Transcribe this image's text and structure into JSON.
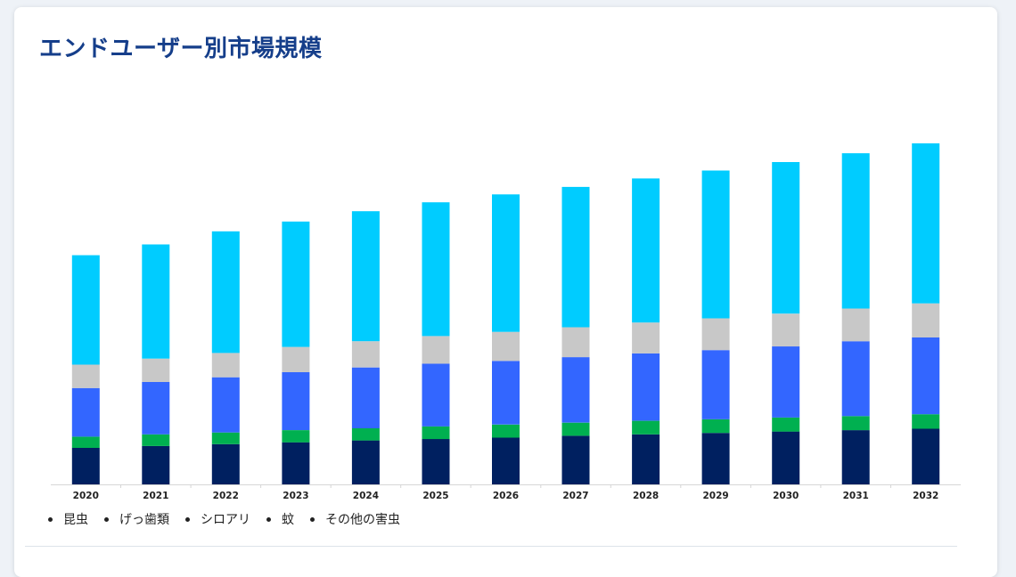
{
  "title": "エンドユーザー別市場規模",
  "colors": {
    "title": "#153e8a",
    "series": [
      "#002060",
      "#00b050",
      "#3366ff",
      "#c8c8c8",
      "#00ccff"
    ]
  },
  "legend": [
    "昆虫",
    "げっ歯類",
    "シロアリ",
    "蚊",
    "その他の害虫"
  ],
  "chart_data": {
    "type": "bar",
    "stacked": true,
    "categories": [
      "2020",
      "2021",
      "2022",
      "2023",
      "2024",
      "2025",
      "2026",
      "2027",
      "2028",
      "2029",
      "2030",
      "2031",
      "2032"
    ],
    "series": [
      {
        "name": "昆虫",
        "values": [
          39,
          41,
          43,
          45,
          47,
          48.5,
          50,
          52,
          53.5,
          55,
          56.5,
          58,
          59.5
        ]
      },
      {
        "name": "げっ歯類",
        "values": [
          12,
          12.5,
          12.5,
          13,
          13,
          13.5,
          14,
          14,
          14.5,
          14.5,
          15,
          15,
          15.5
        ]
      },
      {
        "name": "シロアリ",
        "values": [
          52,
          56,
          59,
          62,
          65,
          67,
          68,
          70,
          72,
          74,
          76,
          80,
          82
        ]
      },
      {
        "name": "蚊",
        "values": [
          25,
          25,
          26,
          27,
          28,
          29.5,
          31,
          32,
          33,
          34,
          35,
          35,
          36.5
        ]
      },
      {
        "name": "その他の害虫",
        "values": [
          117,
          122,
          130,
          134,
          139,
          143,
          147,
          150,
          154,
          158,
          162,
          166,
          171
        ]
      }
    ],
    "ylim": [
      0,
      375
    ],
    "grid": false,
    "legend_position": "bottom-left"
  }
}
